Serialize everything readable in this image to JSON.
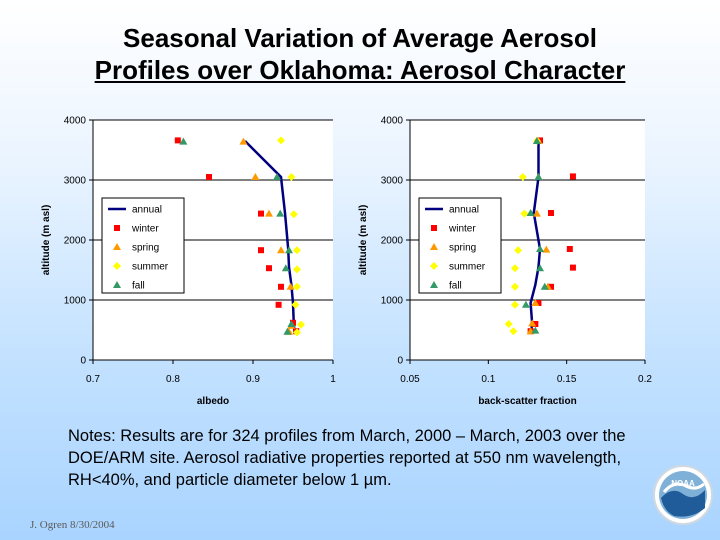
{
  "title_line1": "Seasonal Variation of Average Aerosol",
  "title_line2": "Profiles over Oklahoma: Aerosol Character",
  "notes": "Notes:  Results are for 324 profiles from March, 2000 – March, 2003 over the DOE/ARM site.  Aerosol radiative properties reported at 550 nm wavelength, RH<40%, and particle diameter below 1 µm.",
  "footer": "J. Ogren  8/30/2004",
  "logo_text": "NOAA",
  "colors": {
    "annual": "#000080",
    "winter": "#ff0000",
    "spring": "#ff9900",
    "summer": "#ffff00",
    "fall": "#339966"
  },
  "chart_data": [
    {
      "type": "scatter",
      "xlabel": "albedo",
      "ylabel": "altitude (m asl)",
      "xlim": [
        0.7,
        1.0
      ],
      "ylim": [
        0,
        4000
      ],
      "xticks": [
        "0.7",
        "0.8",
        "0.9",
        "1"
      ],
      "yticks": [
        "0",
        "1000",
        "2000",
        "3000",
        "4000"
      ],
      "grid": "horizontal",
      "legend": "left",
      "series": [
        {
          "name": "annual",
          "kind": "line",
          "points": [
            [
              0.952,
              450
            ],
            [
              0.951,
              600
            ],
            [
              0.95,
              950
            ],
            [
              0.948,
              1250
            ],
            [
              0.945,
              1550
            ],
            [
              0.944,
              1850
            ],
            [
              0.94,
              2450
            ],
            [
              0.935,
              3050
            ],
            [
              0.89,
              3650
            ]
          ]
        },
        {
          "name": "winter",
          "kind": "square",
          "points": [
            [
              0.954,
              480
            ],
            [
              0.95,
              620
            ],
            [
              0.932,
              920
            ],
            [
              0.935,
              1220
            ],
            [
              0.92,
              1530
            ],
            [
              0.91,
              1830
            ],
            [
              0.91,
              2440
            ],
            [
              0.845,
              3050
            ],
            [
              0.806,
              3660
            ]
          ]
        },
        {
          "name": "spring",
          "kind": "triangle",
          "points": [
            [
              0.945,
              470
            ],
            [
              0.948,
              570
            ],
            [
              0.947,
              1220
            ],
            [
              0.935,
              1830
            ],
            [
              0.92,
              2440
            ],
            [
              0.903,
              3050
            ],
            [
              0.888,
              3640
            ]
          ]
        },
        {
          "name": "summer",
          "kind": "diamond",
          "points": [
            [
              0.955,
              460
            ],
            [
              0.96,
              590
            ],
            [
              0.953,
              920
            ],
            [
              0.955,
              1220
            ],
            [
              0.955,
              1510
            ],
            [
              0.955,
              1830
            ],
            [
              0.951,
              2430
            ],
            [
              0.948,
              3050
            ],
            [
              0.935,
              3660
            ]
          ]
        },
        {
          "name": "fall",
          "kind": "triangle",
          "points": [
            [
              0.943,
              470
            ],
            [
              0.948,
              600
            ],
            [
              0.941,
              1530
            ],
            [
              0.945,
              1830
            ],
            [
              0.934,
              2440
            ],
            [
              0.93,
              3050
            ],
            [
              0.813,
              3640
            ]
          ]
        }
      ]
    },
    {
      "type": "scatter",
      "xlabel": "back-scatter fraction",
      "ylabel": "altitude (m asl)",
      "xlim": [
        0.05,
        0.2
      ],
      "ylim": [
        0,
        4000
      ],
      "xticks": [
        "0.05",
        "0.1",
        "0.15",
        "0.2"
      ],
      "yticks": [
        "0",
        "1000",
        "2000",
        "3000",
        "4000"
      ],
      "grid": "horizontal",
      "legend": "left",
      "series": [
        {
          "name": "annual",
          "kind": "line",
          "points": [
            [
              0.127,
              450
            ],
            [
              0.128,
              600
            ],
            [
              0.127,
              950
            ],
            [
              0.13,
              1250
            ],
            [
              0.132,
              1550
            ],
            [
              0.133,
              1850
            ],
            [
              0.129,
              2450
            ],
            [
              0.132,
              3050
            ],
            [
              0.132,
              3650
            ]
          ]
        },
        {
          "name": "winter",
          "kind": "square",
          "points": [
            [
              0.127,
              480
            ],
            [
              0.13,
              600
            ],
            [
              0.132,
              950
            ],
            [
              0.14,
              1220
            ],
            [
              0.154,
              1540
            ],
            [
              0.152,
              1850
            ],
            [
              0.14,
              2450
            ],
            [
              0.154,
              3060
            ],
            [
              0.133,
              3660
            ]
          ]
        },
        {
          "name": "spring",
          "kind": "triangle",
          "points": [
            [
              0.127,
              480
            ],
            [
              0.128,
              610
            ],
            [
              0.13,
              950
            ],
            [
              0.138,
              1220
            ],
            [
              0.137,
              1840
            ],
            [
              0.131,
              2440
            ],
            [
              0.132,
              3050
            ],
            [
              0.132,
              3650
            ]
          ]
        },
        {
          "name": "summer",
          "kind": "diamond",
          "points": [
            [
              0.113,
              600
            ],
            [
              0.116,
              480
            ],
            [
              0.117,
              920
            ],
            [
              0.117,
              1220
            ],
            [
              0.117,
              1530
            ],
            [
              0.119,
              1830
            ],
            [
              0.123,
              2440
            ],
            [
              0.122,
              3050
            ],
            [
              0.131,
              3650
            ]
          ]
        },
        {
          "name": "fall",
          "kind": "triangle",
          "points": [
            [
              0.13,
              490
            ],
            [
              0.124,
              920
            ],
            [
              0.136,
              1220
            ],
            [
              0.133,
              1530
            ],
            [
              0.133,
              1850
            ],
            [
              0.127,
              2450
            ],
            [
              0.132,
              3050
            ],
            [
              0.131,
              3650
            ]
          ]
        }
      ]
    }
  ]
}
